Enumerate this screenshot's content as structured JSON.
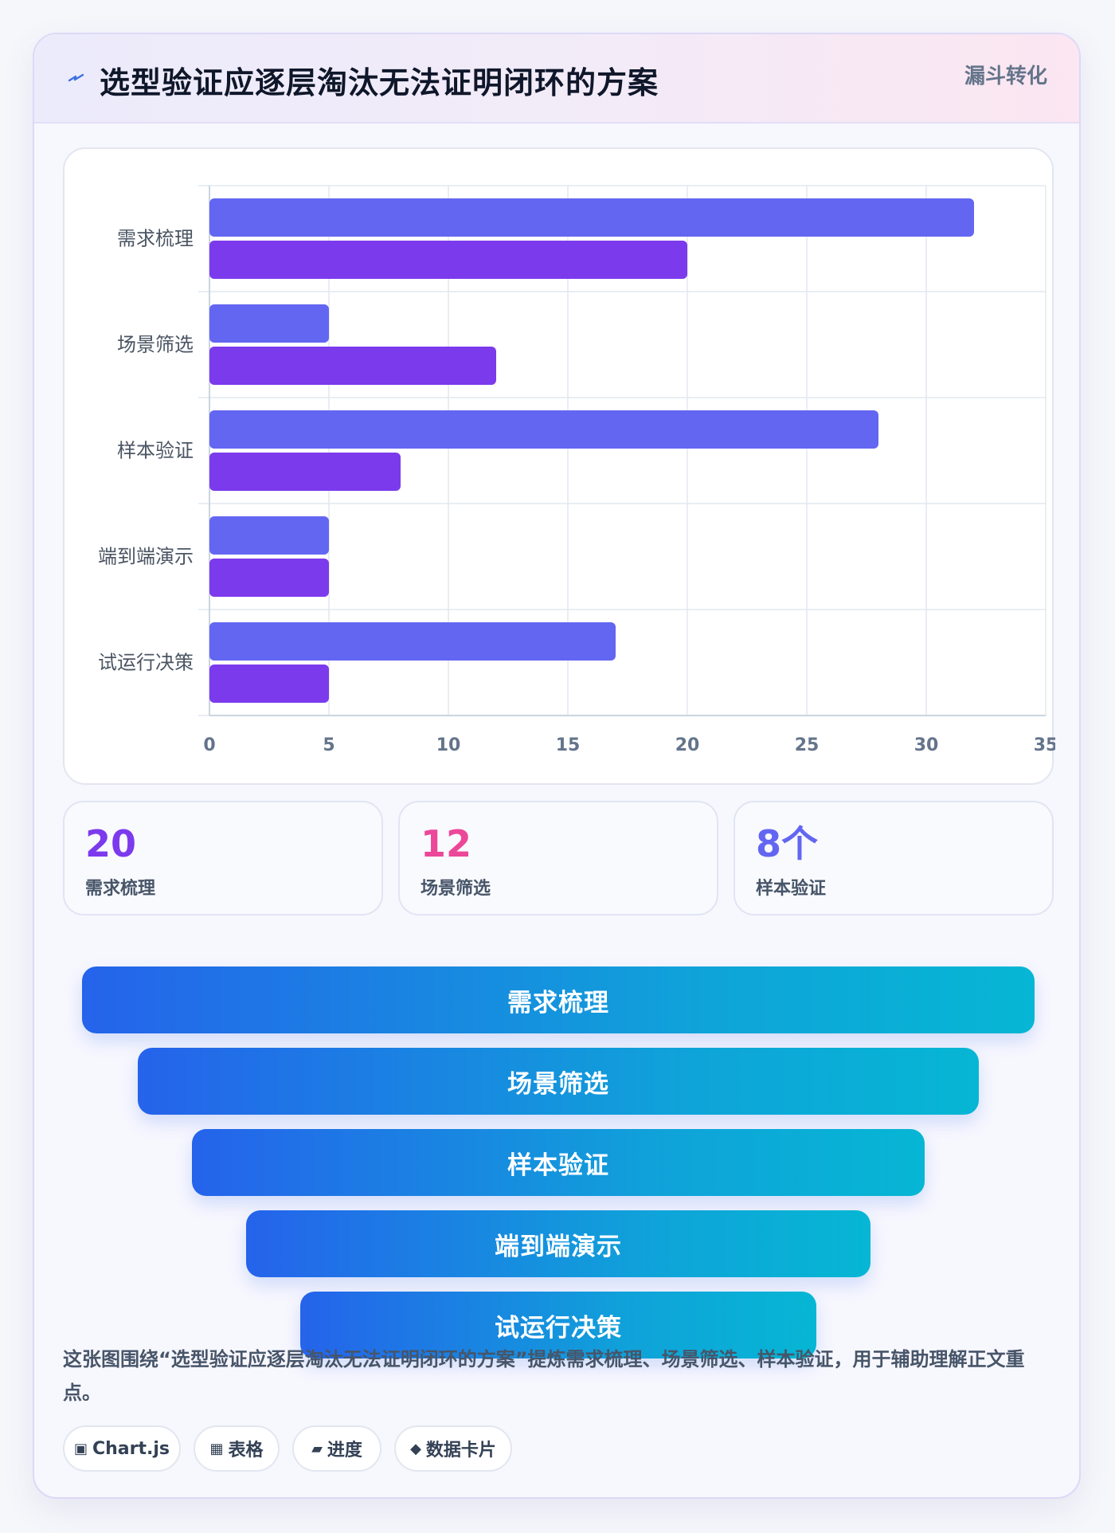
{
  "header": {
    "title": "选型验证应逐层淘汰无法证明闭环的方案",
    "tag": "漏斗转化",
    "icon": "lightning-icon"
  },
  "chart_data": {
    "type": "bar",
    "orientation": "horizontal",
    "categories": [
      "需求梳理",
      "场景筛选",
      "样本验证",
      "端到端演示",
      "试运行决策"
    ],
    "series": [
      {
        "color": "#6366f1",
        "values": [
          32,
          5,
          28,
          5,
          17
        ]
      },
      {
        "color": "#7c3aed",
        "values": [
          20,
          12,
          8,
          5,
          5
        ]
      }
    ],
    "xlim": [
      0,
      35
    ],
    "xticks": [
      0,
      5,
      10,
      15,
      20,
      25,
      30,
      35
    ],
    "grid": true,
    "legend": "none"
  },
  "stats": [
    {
      "value": "20",
      "label": "需求梳理",
      "color": "#7c3aed"
    },
    {
      "value": "12",
      "label": "场景筛选",
      "color": "#ec4899"
    },
    {
      "value": "8个",
      "label": "样本验证",
      "color": "#6366f1"
    }
  ],
  "funnel": [
    "需求梳理",
    "场景筛选",
    "样本验证",
    "端到端演示",
    "试运行决策"
  ],
  "summary": "这张图围绕“选型验证应逐层淘汰无法证明闭环的方案”提炼需求梳理、场景筛选、样本验证，用于辅助理解正文重点。",
  "chips": [
    {
      "icon": "▣",
      "label": "Chart.js"
    },
    {
      "icon": "▦",
      "label": "表格"
    },
    {
      "icon": "▰",
      "label": "进度"
    },
    {
      "icon": "◆",
      "label": "数据卡片"
    }
  ]
}
